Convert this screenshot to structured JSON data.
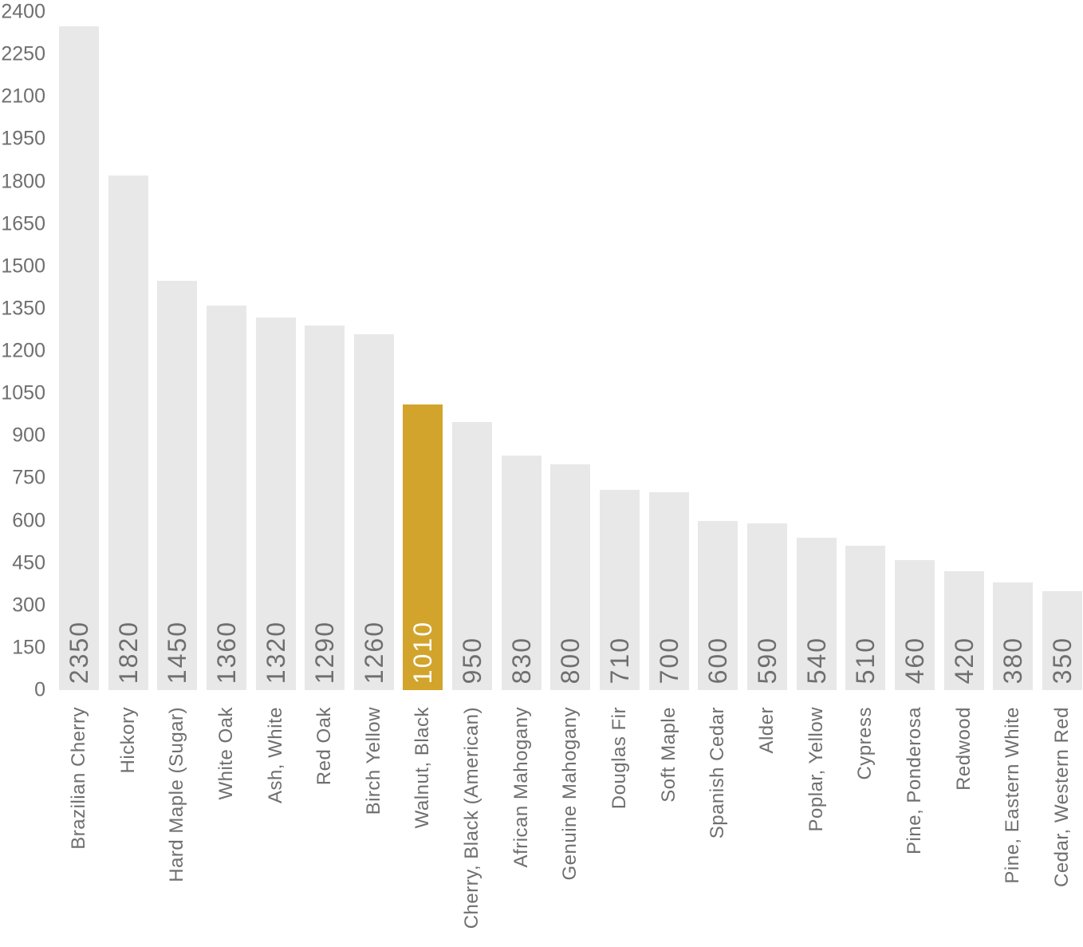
{
  "chart_data": {
    "type": "bar",
    "title": "",
    "xlabel": "",
    "ylabel": "",
    "categories": [
      "Brazilian Cherry",
      "Hickory",
      "Hard Maple (Sugar)",
      "White Oak",
      "Ash, White",
      "Red Oak",
      "Birch Yellow",
      "Walnut, Black",
      "Cherry, Black (American)",
      "African Mahogany",
      "Genuine Mahogany",
      "Douglas Fir",
      "Soft Maple",
      "Spanish Cedar",
      "Alder",
      "Poplar, Yellow",
      "Cypress",
      "Pine, Ponderosa",
      "Redwood",
      "Pine, Eastern White",
      "Cedar, Western Red"
    ],
    "values": [
      2350,
      1820,
      1450,
      1360,
      1320,
      1290,
      1260,
      1010,
      950,
      830,
      800,
      710,
      700,
      600,
      590,
      540,
      510,
      460,
      420,
      380,
      350
    ],
    "highlight_index": 7,
    "highlight_category": "Walnut, Black",
    "ylim": [
      0,
      2400
    ],
    "yticks": [
      0,
      150,
      300,
      450,
      600,
      750,
      900,
      1050,
      1200,
      1350,
      1500,
      1650,
      1800,
      1950,
      2100,
      2250,
      2400
    ],
    "value_label_position": "inside-bottom-rotated-90",
    "category_label_rotation": "vertical-bottom-to-top",
    "grid": false,
    "legend": false,
    "colors": {
      "bar": "#e8e8e8",
      "highlight": "#d2a42c",
      "text": "#6f6f6f",
      "highlight_text": "#ffffff",
      "background": "#ffffff"
    }
  }
}
